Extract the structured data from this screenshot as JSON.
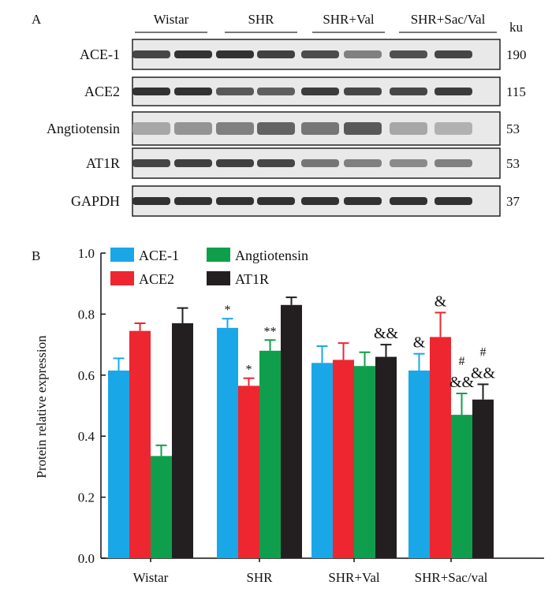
{
  "panel_a": {
    "letter": "A",
    "ku_header": "ku",
    "groups": [
      "Wistar",
      "SHR",
      "SHR+Val",
      "SHR+Sac/Val"
    ],
    "rows": [
      {
        "label": "ACE-1",
        "ku": "190",
        "intensity": [
          0.85,
          0.95,
          0.95,
          0.88,
          0.82,
          0.55,
          0.8,
          0.85
        ]
      },
      {
        "label": "ACE2",
        "ku": "115",
        "intensity": [
          0.95,
          0.95,
          0.75,
          0.72,
          0.9,
          0.85,
          0.85,
          0.9
        ]
      },
      {
        "label": "Angtiotensin",
        "ku": "53",
        "intensity": [
          0.35,
          0.45,
          0.55,
          0.7,
          0.6,
          0.75,
          0.35,
          0.3
        ]
      },
      {
        "label": "AT1R",
        "ku": "53",
        "intensity": [
          0.85,
          0.88,
          0.88,
          0.85,
          0.6,
          0.55,
          0.5,
          0.55
        ]
      },
      {
        "label": "GAPDH",
        "ku": "37",
        "intensity": [
          0.95,
          0.95,
          0.95,
          0.95,
          0.95,
          0.95,
          0.95,
          0.95
        ]
      }
    ]
  },
  "chart_data": {
    "type": "bar",
    "panel_letter": "B",
    "categories": [
      "Wistar",
      "SHR",
      "SHR+Val",
      "SHR+Sac/val"
    ],
    "ylabel": "Protein relative expression",
    "ylim": [
      0,
      1.0
    ],
    "yticks": [
      "0.0",
      "0.2",
      "0.4",
      "0.6",
      "0.8",
      "1.0"
    ],
    "legend_placement": "top-left",
    "series": [
      {
        "name": "ACE-1",
        "color": "#1aa7e8",
        "values": [
          0.615,
          0.755,
          0.64,
          0.615
        ],
        "errors": [
          0.04,
          0.03,
          0.055,
          0.055
        ]
      },
      {
        "name": "ACE2",
        "color": "#ee2630",
        "values": [
          0.745,
          0.565,
          0.65,
          0.725
        ],
        "errors": [
          0.025,
          0.025,
          0.055,
          0.08
        ]
      },
      {
        "name": "Angtiotensin",
        "color": "#0f9f4c",
        "values": [
          0.335,
          0.68,
          0.63,
          0.47
        ],
        "errors": [
          0.035,
          0.035,
          0.045,
          0.07
        ]
      },
      {
        "name": "AT1R",
        "color": "#231f20",
        "values": [
          0.77,
          0.83,
          0.66,
          0.52
        ],
        "errors": [
          0.05,
          0.025,
          0.04,
          0.05
        ]
      }
    ],
    "annotations": [
      {
        "category": 1,
        "series": 0,
        "text": "*"
      },
      {
        "category": 1,
        "series": 1,
        "text": "*"
      },
      {
        "category": 1,
        "series": 2,
        "text": "**"
      },
      {
        "category": 2,
        "series": 3,
        "text": "&&"
      },
      {
        "category": 3,
        "series": 0,
        "text": "&"
      },
      {
        "category": 3,
        "series": 1,
        "text": "&"
      },
      {
        "category": 3,
        "series": 2,
        "text": "&&",
        "top": "#"
      },
      {
        "category": 3,
        "series": 3,
        "text": "&&",
        "top": "#"
      }
    ]
  }
}
